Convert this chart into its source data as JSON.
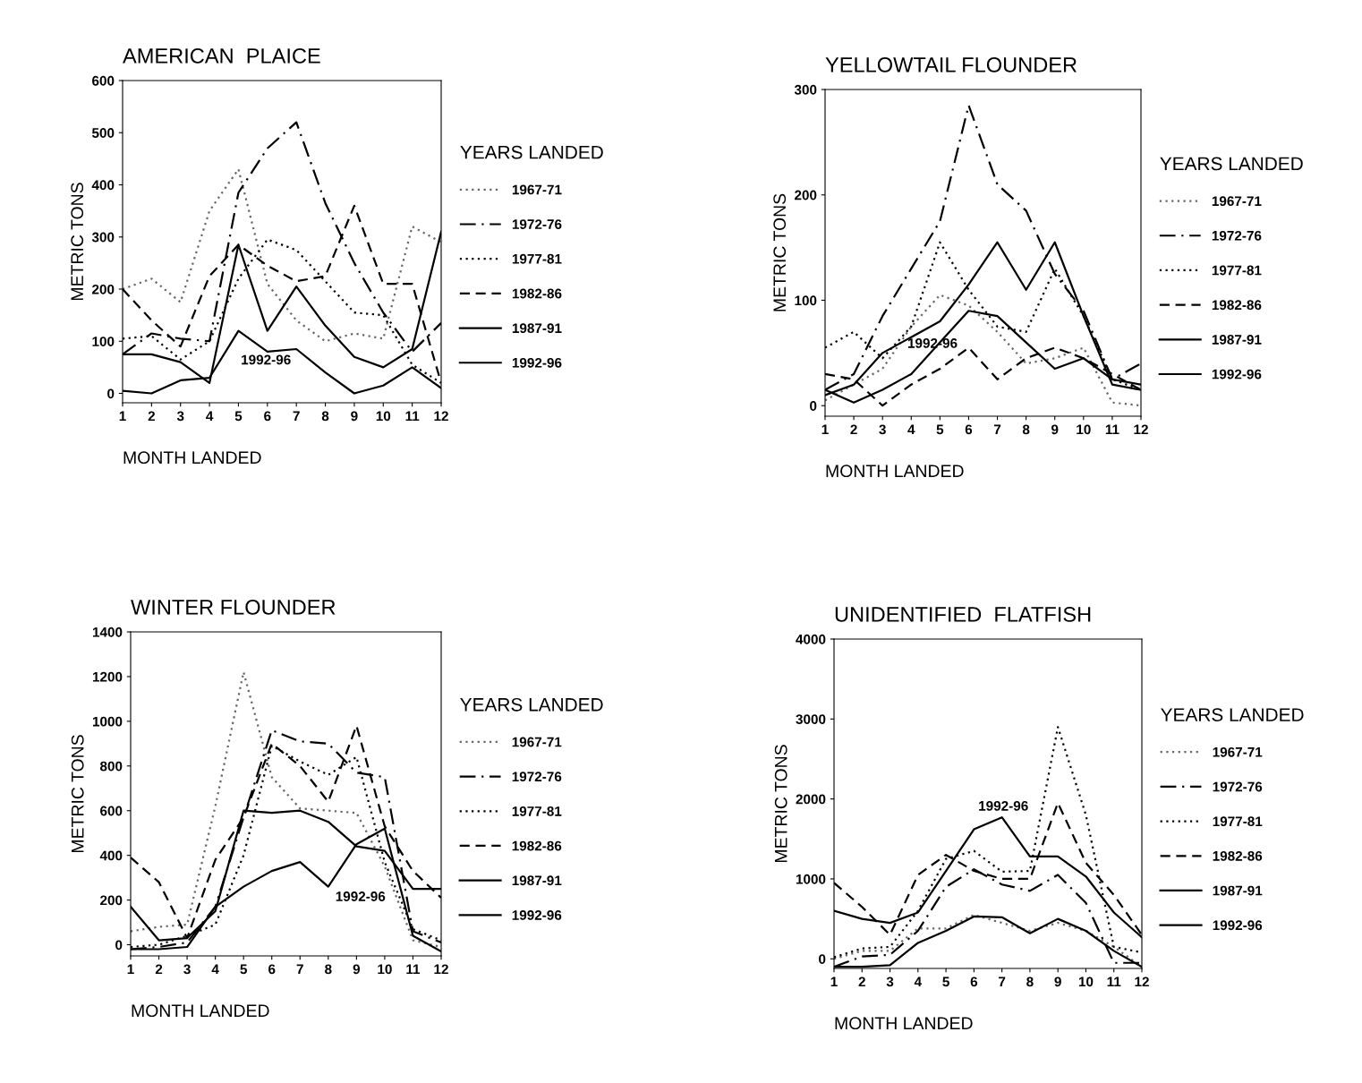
{
  "chart_data": [
    {
      "type": "line",
      "title": "AMERICAN  PLAICE",
      "xlabel": "MONTH LANDED",
      "ylabel": "METRIC TONS",
      "legend_title": "YEARS LANDED",
      "legend": "right",
      "grid": false,
      "x": [
        1,
        2,
        3,
        4,
        5,
        6,
        7,
        8,
        9,
        10,
        11,
        12
      ],
      "xlim": [
        1,
        12
      ],
      "xticks": [
        1,
        2,
        3,
        4,
        5,
        6,
        7,
        8,
        9,
        10,
        11,
        12
      ],
      "ylim": [
        -18,
        600
      ],
      "yticks": [
        0,
        100,
        200,
        300,
        400,
        500,
        600
      ],
      "series": [
        {
          "name": "1967-71",
          "color": "#666666",
          "line_style": "dotted",
          "values": [
            200,
            220,
            175,
            350,
            430,
            210,
            140,
            100,
            115,
            105,
            320,
            290
          ]
        },
        {
          "name": "1972-76",
          "color": "#000000",
          "line_style": "dashdot",
          "values": [
            75,
            115,
            105,
            100,
            385,
            470,
            520,
            365,
            250,
            155,
            80,
            135
          ]
        },
        {
          "name": "1977-81",
          "color": "#000000",
          "line_style": "dotted",
          "values": [
            105,
            110,
            65,
            100,
            220,
            295,
            275,
            215,
            155,
            150,
            55,
            20
          ]
        },
        {
          "name": "1982-86",
          "color": "#000000",
          "line_style": "dashed",
          "values": [
            200,
            140,
            90,
            225,
            285,
            245,
            215,
            225,
            360,
            210,
            210,
            20
          ]
        },
        {
          "name": "1987-91",
          "color": "#000000",
          "line_style": "solid",
          "values": [
            75,
            75,
            60,
            20,
            285,
            120,
            205,
            130,
            70,
            50,
            85,
            310
          ]
        },
        {
          "name": "1992-96",
          "color": "#000000",
          "line_style": "solid",
          "values": [
            5,
            0,
            25,
            30,
            120,
            80,
            85,
            40,
            0,
            15,
            50,
            10
          ]
        }
      ],
      "annotations": [
        "1992-96"
      ]
    },
    {
      "type": "line",
      "title": "YELLOWTAIL FLOUNDER",
      "xlabel": "MONTH LANDED",
      "ylabel": "METRIC TONS",
      "legend_title": "YEARS LANDED",
      "legend": "right",
      "grid": false,
      "x": [
        1,
        2,
        3,
        4,
        5,
        6,
        7,
        8,
        9,
        10,
        11,
        12
      ],
      "xlim": [
        1,
        12
      ],
      "xticks": [
        1,
        2,
        3,
        4,
        5,
        6,
        7,
        8,
        9,
        10,
        11,
        12
      ],
      "ylim": [
        -10,
        300
      ],
      "yticks": [
        0,
        100,
        200,
        300
      ],
      "series": [
        {
          "name": "1967-71",
          "color": "#666666",
          "line_style": "dotted",
          "values": [
            5,
            20,
            35,
            75,
            105,
            95,
            70,
            40,
            45,
            55,
            3,
            0
          ]
        },
        {
          "name": "1972-76",
          "color": "#000000",
          "line_style": "dashdot",
          "values": [
            15,
            30,
            85,
            130,
            175,
            285,
            210,
            185,
            125,
            90,
            25,
            40
          ]
        },
        {
          "name": "1977-81",
          "color": "#000000",
          "line_style": "dotted",
          "values": [
            55,
            70,
            45,
            75,
            155,
            110,
            75,
            70,
            130,
            85,
            25,
            15
          ]
        },
        {
          "name": "1982-86",
          "color": "#000000",
          "line_style": "dashed",
          "values": [
            30,
            25,
            0,
            20,
            35,
            55,
            25,
            45,
            55,
            45,
            30,
            15
          ]
        },
        {
          "name": "1987-91",
          "color": "#000000",
          "line_style": "solid",
          "values": [
            10,
            20,
            50,
            65,
            80,
            115,
            155,
            110,
            155,
            85,
            20,
            15
          ]
        },
        {
          "name": "1992-96",
          "color": "#000000",
          "line_style": "solid",
          "values": [
            15,
            3,
            15,
            30,
            60,
            90,
            85,
            60,
            35,
            45,
            25,
            20
          ]
        }
      ],
      "annotations": [
        "1992-96"
      ]
    },
    {
      "type": "line",
      "title": "WINTER FLOUNDER",
      "xlabel": "MONTH LANDED",
      "ylabel": "METRIC TONS",
      "legend_title": "YEARS LANDED",
      "legend": "right",
      "grid": false,
      "x": [
        1,
        2,
        3,
        4,
        5,
        6,
        7,
        8,
        9,
        10,
        11,
        12
      ],
      "xlim": [
        1,
        12
      ],
      "xticks": [
        1,
        2,
        3,
        4,
        5,
        6,
        7,
        8,
        9,
        10,
        11,
        12
      ],
      "ylim": [
        -50,
        1400
      ],
      "yticks": [
        0,
        200,
        400,
        600,
        800,
        1000,
        1200,
        1400
      ],
      "series": [
        {
          "name": "1967-71",
          "color": "#666666",
          "line_style": "dotted",
          "values": [
            60,
            80,
            90,
            620,
            1220,
            750,
            610,
            600,
            590,
            350,
            20,
            -10
          ]
        },
        {
          "name": "1972-76",
          "color": "#000000",
          "line_style": "dashdot",
          "values": [
            -20,
            -10,
            10,
            170,
            570,
            960,
            910,
            900,
            770,
            750,
            60,
            10
          ]
        },
        {
          "name": "1977-81",
          "color": "#000000",
          "line_style": "dotted",
          "values": [
            -10,
            0,
            40,
            90,
            400,
            890,
            820,
            760,
            840,
            370,
            70,
            20
          ]
        },
        {
          "name": "1982-86",
          "color": "#000000",
          "line_style": "dashed",
          "values": [
            390,
            280,
            30,
            380,
            570,
            900,
            800,
            640,
            980,
            530,
            330,
            210
          ]
        },
        {
          "name": "1987-91",
          "color": "#000000",
          "line_style": "solid",
          "values": [
            170,
            20,
            30,
            150,
            600,
            590,
            600,
            550,
            440,
            420,
            250,
            250
          ]
        },
        {
          "name": "1992-96",
          "color": "#000000",
          "line_style": "solid",
          "values": [
            -20,
            -20,
            -10,
            170,
            260,
            330,
            370,
            260,
            450,
            520,
            40,
            -30
          ]
        }
      ],
      "annotations": [
        "1992-96"
      ]
    },
    {
      "type": "line",
      "title": "UNIDENTIFIED  FLATFISH",
      "xlabel": "MONTH LANDED",
      "ylabel": "METRIC TONS",
      "legend_title": "YEARS LANDED",
      "legend": "right",
      "grid": false,
      "x": [
        1,
        2,
        3,
        4,
        5,
        6,
        7,
        8,
        9,
        10,
        11,
        12
      ],
      "xlim": [
        1,
        12
      ],
      "xticks": [
        1,
        2,
        3,
        4,
        5,
        6,
        7,
        8,
        9,
        10,
        11,
        12
      ],
      "ylim": [
        -120,
        4000
      ],
      "yticks": [
        0,
        1000,
        2000,
        3000,
        4000
      ],
      "series": [
        {
          "name": "1967-71",
          "color": "#666666",
          "line_style": "dotted",
          "values": [
            0,
            100,
            100,
            380,
            380,
            550,
            450,
            350,
            450,
            350,
            150,
            -100
          ]
        },
        {
          "name": "1972-76",
          "color": "#000000",
          "line_style": "dashdot",
          "values": [
            -100,
            30,
            50,
            350,
            900,
            1120,
            930,
            850,
            1050,
            700,
            -50,
            -50
          ]
        },
        {
          "name": "1977-81",
          "color": "#000000",
          "line_style": "dotted",
          "values": [
            20,
            130,
            150,
            600,
            1250,
            1350,
            1090,
            1100,
            2900,
            1800,
            150,
            80
          ]
        },
        {
          "name": "1982-86",
          "color": "#000000",
          "line_style": "dashed",
          "values": [
            950,
            650,
            300,
            1050,
            1300,
            1100,
            1000,
            1000,
            1950,
            1200,
            800,
            300
          ]
        },
        {
          "name": "1987-91",
          "color": "#000000",
          "line_style": "solid",
          "values": [
            -100,
            -100,
            -80,
            200,
            350,
            530,
            520,
            320,
            500,
            350,
            100,
            -100
          ]
        },
        {
          "name": "1992-96",
          "color": "#000000",
          "line_style": "solid",
          "values": [
            600,
            500,
            450,
            580,
            1100,
            1620,
            1770,
            1280,
            1280,
            1030,
            580,
            270
          ]
        }
      ],
      "annotations": [
        "1992-96"
      ]
    }
  ]
}
